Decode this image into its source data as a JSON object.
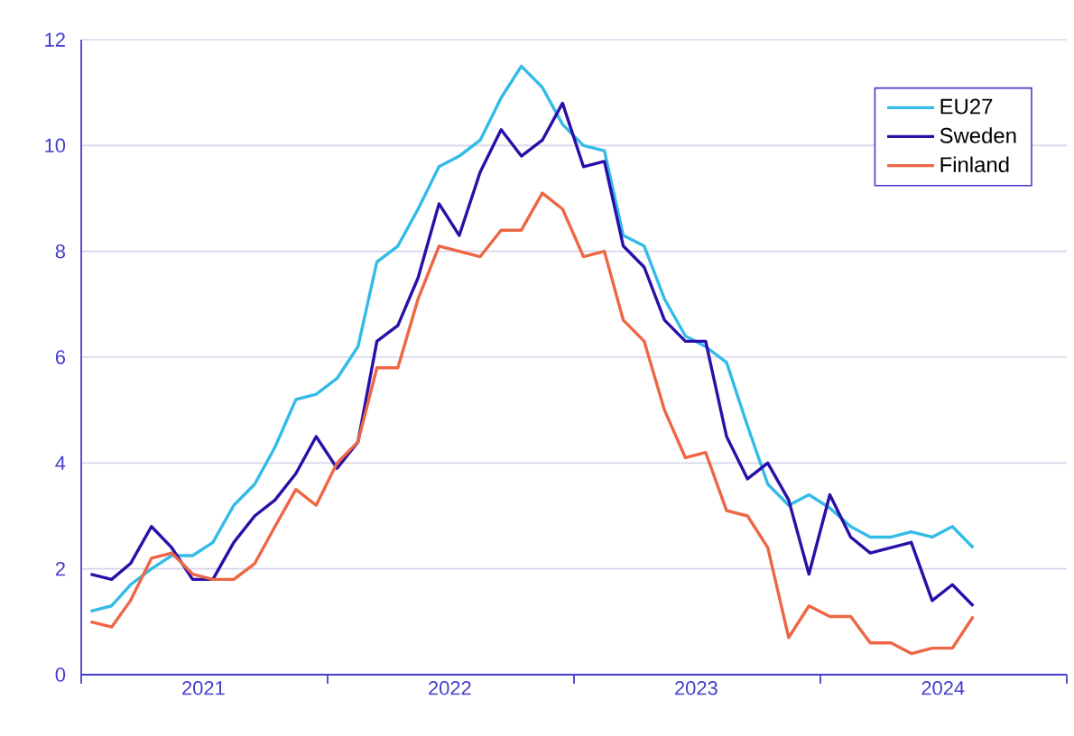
{
  "chart_data": {
    "type": "line",
    "x": [
      "2021-01-15",
      "2021-02-15",
      "2021-03-15",
      "2021-04-15",
      "2021-05-15",
      "2021-06-15",
      "2021-07-15",
      "2021-08-15",
      "2021-09-15",
      "2021-10-15",
      "2021-11-15",
      "2021-12-15",
      "2022-01-15",
      "2022-02-15",
      "2022-03-15",
      "2022-04-15",
      "2022-05-15",
      "2022-06-15",
      "2022-07-15",
      "2022-08-15",
      "2022-09-15",
      "2022-10-15",
      "2022-11-15",
      "2022-12-15",
      "2023-01-15",
      "2023-02-15",
      "2023-03-15",
      "2023-04-15",
      "2023-05-15",
      "2023-06-15",
      "2023-07-15",
      "2023-08-15",
      "2023-09-15",
      "2023-10-15",
      "2023-11-15",
      "2023-12-15",
      "2024-01-15",
      "2024-02-15",
      "2024-03-15",
      "2024-04-15",
      "2024-05-15",
      "2024-06-15",
      "2024-07-15",
      "2024-08-15"
    ],
    "series": [
      {
        "name": "EU27",
        "color": "#33bbe8",
        "values": [
          1.2,
          1.3,
          1.7,
          2.0,
          2.25,
          2.25,
          2.5,
          3.2,
          3.6,
          4.3,
          5.2,
          5.3,
          5.6,
          6.2,
          7.8,
          8.1,
          8.8,
          9.6,
          9.8,
          10.1,
          10.9,
          11.5,
          11.1,
          10.4,
          10.0,
          9.9,
          8.3,
          8.1,
          7.1,
          6.4,
          6.2,
          5.9,
          4.7,
          3.6,
          3.2,
          3.4,
          3.15,
          2.8,
          2.6,
          2.6,
          2.7,
          2.6,
          2.8,
          2.4
        ]
      },
      {
        "name": "Sweden",
        "color": "#2a0fa8",
        "values": [
          1.9,
          1.8,
          2.1,
          2.8,
          2.4,
          1.8,
          1.8,
          2.5,
          3.0,
          3.3,
          3.8,
          4.5,
          3.9,
          4.4,
          6.3,
          6.6,
          7.5,
          8.9,
          8.3,
          9.5,
          10.3,
          9.8,
          10.1,
          10.8,
          9.6,
          9.7,
          8.1,
          7.7,
          6.7,
          6.3,
          6.3,
          4.5,
          3.7,
          4.0,
          3.3,
          1.9,
          3.4,
          2.6,
          2.3,
          2.4,
          2.5,
          1.4,
          1.7,
          1.3
        ]
      },
      {
        "name": "Finland",
        "color": "#ee6644",
        "values": [
          1.0,
          0.9,
          1.4,
          2.2,
          2.3,
          1.9,
          1.8,
          1.8,
          2.1,
          2.8,
          3.5,
          3.2,
          4.0,
          4.4,
          5.8,
          5.8,
          7.1,
          8.1,
          8.0,
          7.9,
          8.4,
          8.4,
          9.1,
          8.8,
          7.9,
          8.0,
          6.7,
          6.3,
          5.0,
          4.1,
          4.2,
          3.1,
          3.0,
          2.4,
          0.7,
          1.3,
          1.1,
          1.1,
          0.6,
          0.6,
          0.4,
          0.5,
          0.5,
          1.1
        ]
      }
    ],
    "xlim": [
      "2021-01-01",
      "2025-01-01"
    ],
    "xticks": [
      {
        "value": "2021-01-01",
        "label": null
      },
      {
        "value": "2021-07-01",
        "label": "2021"
      },
      {
        "value": "2022-01-01",
        "label": null
      },
      {
        "value": "2022-07-01",
        "label": "2022"
      },
      {
        "value": "2023-01-01",
        "label": null
      },
      {
        "value": "2023-07-01",
        "label": "2023"
      },
      {
        "value": "2024-01-01",
        "label": null
      },
      {
        "value": "2024-07-01",
        "label": "2024"
      },
      {
        "value": "2025-01-01",
        "label": null
      }
    ],
    "ylim": [
      0,
      12
    ],
    "yticks": [
      0,
      2,
      4,
      6,
      8,
      10,
      12
    ],
    "grid": "y",
    "legend": "top right",
    "marker": "none",
    "line_style": "solid"
  }
}
